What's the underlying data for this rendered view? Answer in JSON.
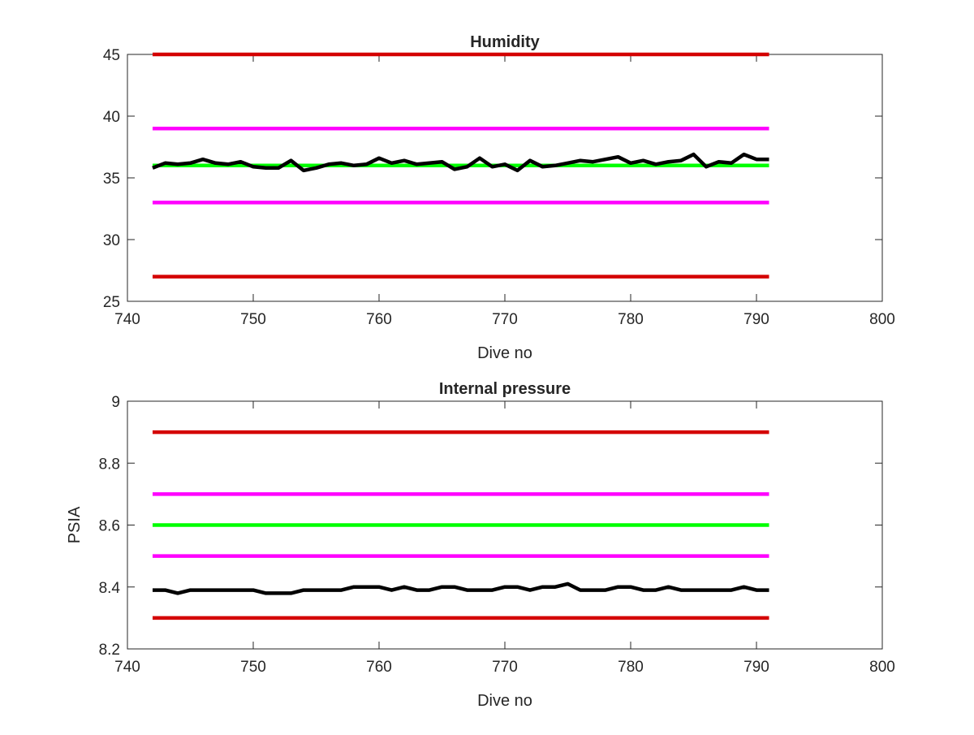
{
  "chart_data": [
    {
      "type": "line",
      "title": "Humidity",
      "xlabel": "Dive no",
      "ylabel": "",
      "xlim": [
        740,
        800
      ],
      "ylim": [
        25,
        45
      ],
      "xticks": [
        740,
        750,
        760,
        770,
        780,
        790,
        800
      ],
      "yticks": [
        25,
        30,
        35,
        40,
        45
      ],
      "xtick_labels": [
        "740",
        "750",
        "760",
        "770",
        "780",
        "790",
        "800"
      ],
      "ytick_labels": [
        "25",
        "30",
        "35",
        "40",
        "45"
      ],
      "grid": false,
      "series": [
        {
          "color": "#d40000",
          "x": [
            742,
            791
          ],
          "y": [
            45,
            45
          ]
        },
        {
          "color": "#ff00ff",
          "x": [
            742,
            791
          ],
          "y": [
            39,
            39
          ]
        },
        {
          "color": "#00ff00",
          "x": [
            742,
            791
          ],
          "y": [
            36,
            36
          ]
        },
        {
          "color": "#ff00ff",
          "x": [
            742,
            791
          ],
          "y": [
            33,
            33
          ]
        },
        {
          "color": "#d40000",
          "x": [
            742,
            791
          ],
          "y": [
            27,
            27
          ]
        },
        {
          "color": "#000000",
          "x": [
            742,
            743,
            744,
            745,
            746,
            747,
            748,
            749,
            750,
            751,
            752,
            753,
            754,
            755,
            756,
            757,
            758,
            759,
            760,
            761,
            762,
            763,
            764,
            765,
            766,
            767,
            768,
            769,
            770,
            771,
            772,
            773,
            774,
            775,
            776,
            777,
            778,
            779,
            780,
            781,
            782,
            783,
            784,
            785,
            786,
            787,
            788,
            789,
            790,
            791
          ],
          "y": [
            35.8,
            36.2,
            36.1,
            36.2,
            36.5,
            36.2,
            36.1,
            36.3,
            35.9,
            35.8,
            35.8,
            36.4,
            35.6,
            35.8,
            36.1,
            36.2,
            36.0,
            36.1,
            36.6,
            36.2,
            36.4,
            36.1,
            36.2,
            36.3,
            35.7,
            35.9,
            36.6,
            35.9,
            36.1,
            35.6,
            36.4,
            35.9,
            36.0,
            36.2,
            36.4,
            36.3,
            36.5,
            36.7,
            36.2,
            36.4,
            36.1,
            36.3,
            36.4,
            36.9,
            35.9,
            36.3,
            36.2,
            36.9,
            36.5,
            36.5
          ]
        }
      ]
    },
    {
      "type": "line",
      "title": "Internal pressure",
      "xlabel": "Dive no",
      "ylabel": "PSIA",
      "xlim": [
        740,
        800
      ],
      "ylim": [
        8.2,
        9.0
      ],
      "xticks": [
        740,
        750,
        760,
        770,
        780,
        790,
        800
      ],
      "yticks": [
        8.2,
        8.4,
        8.6,
        8.8,
        9.0
      ],
      "xtick_labels": [
        "740",
        "750",
        "760",
        "770",
        "780",
        "790",
        "800"
      ],
      "ytick_labels": [
        "8.2",
        "8.4",
        "8.6",
        "8.8",
        "9"
      ],
      "grid": false,
      "series": [
        {
          "color": "#d40000",
          "x": [
            742,
            791
          ],
          "y": [
            8.9,
            8.9
          ]
        },
        {
          "color": "#ff00ff",
          "x": [
            742,
            791
          ],
          "y": [
            8.7,
            8.7
          ]
        },
        {
          "color": "#00ff00",
          "x": [
            742,
            791
          ],
          "y": [
            8.6,
            8.6
          ]
        },
        {
          "color": "#ff00ff",
          "x": [
            742,
            791
          ],
          "y": [
            8.5,
            8.5
          ]
        },
        {
          "color": "#d40000",
          "x": [
            742,
            791
          ],
          "y": [
            8.3,
            8.3
          ]
        },
        {
          "color": "#000000",
          "x": [
            742,
            743,
            744,
            745,
            746,
            747,
            748,
            749,
            750,
            751,
            752,
            753,
            754,
            755,
            756,
            757,
            758,
            759,
            760,
            761,
            762,
            763,
            764,
            765,
            766,
            767,
            768,
            769,
            770,
            771,
            772,
            773,
            774,
            775,
            776,
            777,
            778,
            779,
            780,
            781,
            782,
            783,
            784,
            785,
            786,
            787,
            788,
            789,
            790,
            791
          ],
          "y": [
            8.39,
            8.39,
            8.38,
            8.39,
            8.39,
            8.39,
            8.39,
            8.39,
            8.39,
            8.38,
            8.38,
            8.38,
            8.39,
            8.39,
            8.39,
            8.39,
            8.4,
            8.4,
            8.4,
            8.39,
            8.4,
            8.39,
            8.39,
            8.4,
            8.4,
            8.39,
            8.39,
            8.39,
            8.4,
            8.4,
            8.39,
            8.4,
            8.4,
            8.41,
            8.39,
            8.39,
            8.39,
            8.4,
            8.4,
            8.39,
            8.39,
            8.4,
            8.39,
            8.39,
            8.39,
            8.39,
            8.39,
            8.4,
            8.39,
            8.39
          ]
        }
      ]
    }
  ]
}
